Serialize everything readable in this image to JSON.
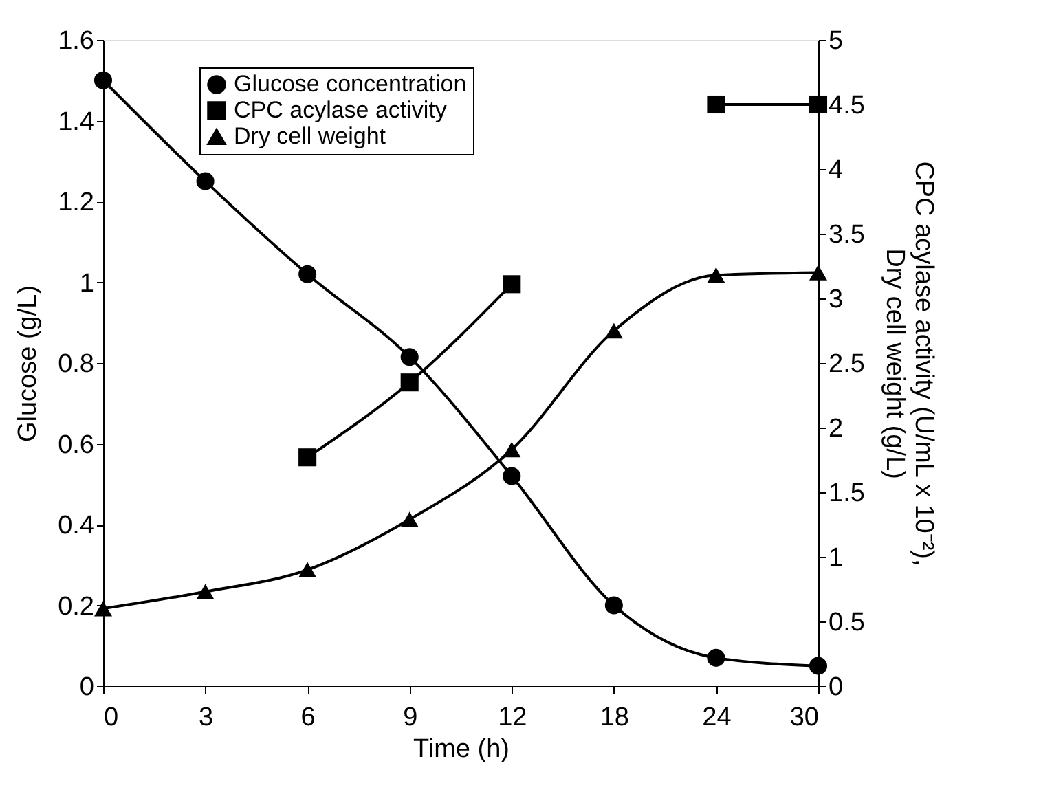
{
  "chart_data": {
    "type": "line",
    "xlabel": "Time (h)",
    "ylabel": "Glucose (g/L)",
    "y2label": "CPC acylase activity (U/mL x 10⁻²), Dry cell weight (g/L)",
    "categories": [
      "0",
      "3",
      "6",
      "9",
      "12",
      "18",
      "24",
      "30"
    ],
    "series": [
      {
        "name": "Glucose concentration",
        "color": "#000000",
        "marker": "circle",
        "values": [
          1.5,
          1.25,
          1.02,
          0.815,
          0.52,
          0.2,
          0.07,
          0.05
        ]
      },
      {
        "name": "CPC acylase activity",
        "color": "#000000",
        "marker": "square",
        "axis": "y2",
        "values": [
          null,
          null,
          1.77,
          2.35,
          3.11,
          null,
          4.5,
          4.5
        ]
      },
      {
        "name": "Dry cell weight",
        "color": "#000000",
        "marker": "triangle",
        "axis": "y2",
        "values": [
          0.6,
          0.73,
          0.9,
          1.29,
          1.83,
          2.75,
          3.18,
          3.2
        ]
      }
    ],
    "ylim": [
      0,
      1.6
    ],
    "yticks": [
      0,
      0.2,
      0.4,
      0.6,
      0.8,
      1,
      1.2,
      1.4,
      1.6
    ],
    "y2lim": [
      0,
      5
    ],
    "y2ticks": [
      0,
      0.5,
      1,
      1.5,
      2,
      2.5,
      3,
      3.5,
      4,
      4.5,
      5
    ],
    "legend": "top left",
    "grid": false,
    "line_style": "solid"
  }
}
